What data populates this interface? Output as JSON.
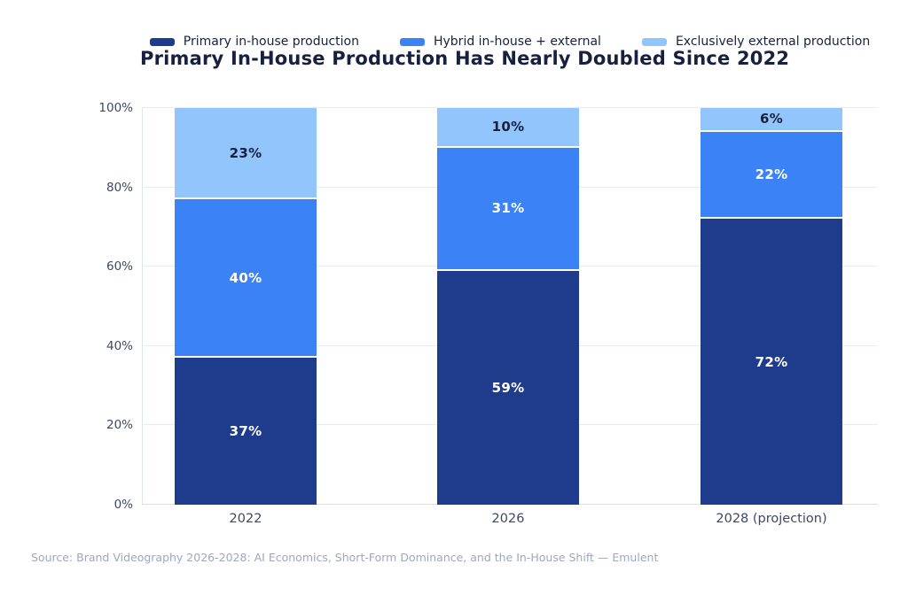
{
  "title": "Primary In-House Production Has Nearly Doubled Since 2022",
  "source": "Source: Brand Videography 2026-2028: AI Economics, Short-Form Dominance, and the In-House Shift — Emulent",
  "colors": {
    "primary_navy": "#1F3B8C",
    "hybrid_blue": "#3B82F6",
    "external_light_blue": "#93C5FD",
    "title_text": "#17213F",
    "tick_text": "#3D4862",
    "gridline": "#E9ECF4",
    "source_text": "#9CA7C4"
  },
  "chart_data": {
    "type": "bar",
    "stacked": true,
    "title": "Primary In-House Production Has Nearly Doubled Since 2022",
    "xlabel": "",
    "ylabel": "",
    "ylim": [
      0,
      100
    ],
    "grid": true,
    "legend_position": "top",
    "value_suffix": "%",
    "categories": [
      "2022",
      "2026",
      "2028 (projection)"
    ],
    "yticks": [
      "0%",
      "20%",
      "40%",
      "60%",
      "80%",
      "100%"
    ],
    "series": [
      {
        "name": "Primary in-house production",
        "color": "#1F3B8C",
        "label_color": "#ffffff",
        "values": [
          37,
          59,
          72
        ]
      },
      {
        "name": "Hybrid in-house + external",
        "color": "#3B82F6",
        "label_color": "#ffffff",
        "values": [
          40,
          31,
          22
        ]
      },
      {
        "name": "Exclusively external production",
        "color": "#93C5FD",
        "label_color": "#17213F",
        "values": [
          23,
          10,
          6
        ]
      }
    ]
  }
}
